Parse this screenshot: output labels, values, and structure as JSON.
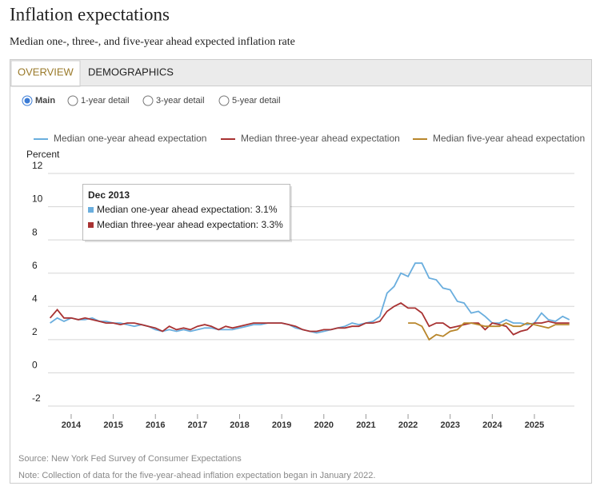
{
  "header": {
    "title": "Inflation expectations",
    "subtitle": "Median one-, three-, and five-year ahead expected inflation rate"
  },
  "tabs": [
    "OVERVIEW",
    "DEMOGRAPHICS"
  ],
  "options": [
    "Main",
    "1-year detail",
    "3-year detail",
    "5-year detail"
  ],
  "footer": {
    "source": "Source: New York Fed Survey of Consumer Expectations",
    "note": "Note: Collection of data for the five-year-ahead inflation expectation began in January 2022."
  },
  "chart_data": {
    "type": "line",
    "ylabel": "Percent",
    "x": [
      2013.5,
      2013.67,
      2013.83,
      2014.0,
      2014.17,
      2014.33,
      2014.5,
      2014.67,
      2014.83,
      2015.0,
      2015.17,
      2015.33,
      2015.5,
      2015.67,
      2015.83,
      2016.0,
      2016.17,
      2016.33,
      2016.5,
      2016.67,
      2016.83,
      2017.0,
      2017.17,
      2017.33,
      2017.5,
      2017.67,
      2017.83,
      2018.0,
      2018.17,
      2018.33,
      2018.5,
      2018.67,
      2018.83,
      2019.0,
      2019.17,
      2019.33,
      2019.5,
      2019.67,
      2019.83,
      2020.0,
      2020.17,
      2020.33,
      2020.5,
      2020.67,
      2020.83,
      2021.0,
      2021.17,
      2021.33,
      2021.5,
      2021.67,
      2021.83,
      2022.0,
      2022.17,
      2022.33,
      2022.5,
      2022.67,
      2022.83,
      2023.0,
      2023.17,
      2023.33,
      2023.5,
      2023.67,
      2023.83,
      2024.0,
      2024.17,
      2024.33,
      2024.5,
      2024.67,
      2024.83,
      2025.0,
      2025.17,
      2025.33,
      2025.5,
      2025.67,
      2025.83
    ],
    "series": [
      {
        "name": "Median one-year ahead expectation",
        "color": "#6aaede",
        "values": [
          3.0,
          3.3,
          3.1,
          3.3,
          3.2,
          3.2,
          3.3,
          3.1,
          3.1,
          3.0,
          3.0,
          2.9,
          2.8,
          2.9,
          2.8,
          2.6,
          2.5,
          2.6,
          2.5,
          2.6,
          2.5,
          2.6,
          2.7,
          2.7,
          2.6,
          2.6,
          2.6,
          2.7,
          2.8,
          2.9,
          2.9,
          3.0,
          3.0,
          3.0,
          2.9,
          2.7,
          2.6,
          2.5,
          2.4,
          2.5,
          2.6,
          2.7,
          2.8,
          3.0,
          2.9,
          3.0,
          3.1,
          3.4,
          4.8,
          5.2,
          6.0,
          5.8,
          6.6,
          6.6,
          5.7,
          5.6,
          5.1,
          5.0,
          4.3,
          4.2,
          3.6,
          3.7,
          3.4,
          3.0,
          3.0,
          3.2,
          3.0,
          3.0,
          2.9,
          3.0,
          3.6,
          3.2,
          3.1,
          3.4,
          3.2
        ]
      },
      {
        "name": "Median three-year ahead expectation",
        "color": "#a83232",
        "values": [
          3.3,
          3.8,
          3.3,
          3.3,
          3.2,
          3.3,
          3.2,
          3.1,
          3.0,
          3.0,
          2.9,
          3.0,
          3.0,
          2.9,
          2.8,
          2.7,
          2.5,
          2.8,
          2.6,
          2.7,
          2.6,
          2.8,
          2.9,
          2.8,
          2.6,
          2.8,
          2.7,
          2.8,
          2.9,
          3.0,
          3.0,
          3.0,
          3.0,
          3.0,
          2.9,
          2.8,
          2.6,
          2.5,
          2.5,
          2.6,
          2.6,
          2.7,
          2.7,
          2.8,
          2.8,
          3.0,
          3.0,
          3.1,
          3.7,
          4.0,
          4.2,
          3.9,
          3.9,
          3.6,
          2.8,
          3.0,
          3.0,
          2.7,
          2.8,
          2.9,
          3.0,
          3.0,
          2.6,
          3.0,
          2.9,
          2.8,
          2.3,
          2.5,
          2.6,
          3.0,
          3.0,
          3.1,
          3.0,
          3.0,
          3.0
        ]
      },
      {
        "name": "Median five-year ahead expectation",
        "color": "#b8862b",
        "values": [
          null,
          null,
          null,
          null,
          null,
          null,
          null,
          null,
          null,
          null,
          null,
          null,
          null,
          null,
          null,
          null,
          null,
          null,
          null,
          null,
          null,
          null,
          null,
          null,
          null,
          null,
          null,
          null,
          null,
          null,
          null,
          null,
          null,
          null,
          null,
          null,
          null,
          null,
          null,
          null,
          null,
          null,
          null,
          null,
          null,
          null,
          null,
          null,
          null,
          null,
          null,
          3.0,
          3.0,
          2.8,
          2.0,
          2.3,
          2.2,
          2.5,
          2.6,
          3.0,
          3.0,
          2.9,
          2.8,
          2.8,
          2.8,
          3.0,
          2.8,
          2.8,
          3.0,
          2.9,
          2.8,
          2.7,
          2.9,
          2.9,
          2.9
        ]
      }
    ],
    "xlim": [
      2013.45,
      2025.95
    ],
    "xticks": [
      2014,
      2015,
      2016,
      2017,
      2018,
      2019,
      2020,
      2021,
      2022,
      2023,
      2024,
      2025
    ],
    "ylim": [
      -2,
      12
    ],
    "yticks": [
      -2,
      0,
      2,
      4,
      6,
      8,
      10,
      12
    ],
    "grid": true,
    "tooltip": {
      "title": "Dec 2013",
      "items": [
        "Median one-year ahead expectation: 3.1%",
        "Median three-year ahead expectation: 3.3%"
      ]
    }
  }
}
